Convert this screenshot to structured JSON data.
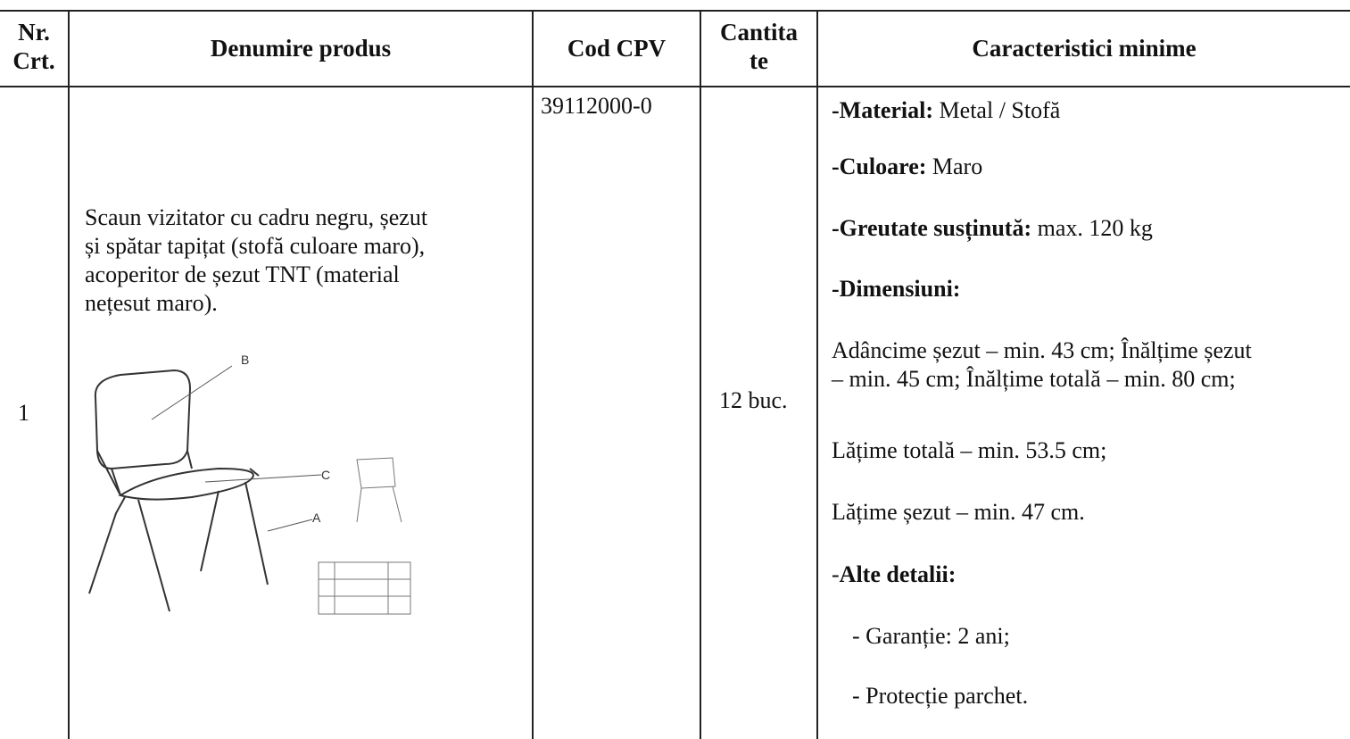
{
  "table": {
    "header": {
      "nr": [
        "Nr.",
        "Crt."
      ],
      "name": "Denumire produs",
      "cpv": "Cod CPV",
      "qty": [
        "Cantita",
        "te"
      ],
      "specs": "Caracteristici minime"
    },
    "row": {
      "nr": "1",
      "description": [
        "Scaun vizitator cu cadru negru, șezut",
        "și spătar tapițat (stofă culoare maro),",
        "acoperitor de șezut TNT (material",
        "nețesut maro)."
      ],
      "image_labels": [
        "B",
        "C",
        "A"
      ],
      "cpv": "39112000-0",
      "qty": "12 buc.",
      "specs": {
        "material": {
          "label": "-Material:",
          "text": " Metal / Stofă"
        },
        "color": {
          "label": "-Culoare:",
          "text": " Maro"
        },
        "weight": {
          "label": "-Greutate susținută:",
          "text": " max. 120 kg"
        },
        "dims_label": "-Dimensiuni:",
        "dims": [
          "Adâncime șezut – min. 43 cm; Înălțime șezut",
          "– min. 45 cm; Înălțime totală – min. 80 cm;"
        ],
        "total_width": "Lățime totală – min. 53.5 cm;",
        "seat_width": "Lățime șezut – min. 47 cm.",
        "other": {
          "prefix": "-",
          "label": "Alte detalii:"
        },
        "warranty": "- Garanție: 2 ani;",
        "floor": "- Protecție parchet."
      }
    }
  }
}
